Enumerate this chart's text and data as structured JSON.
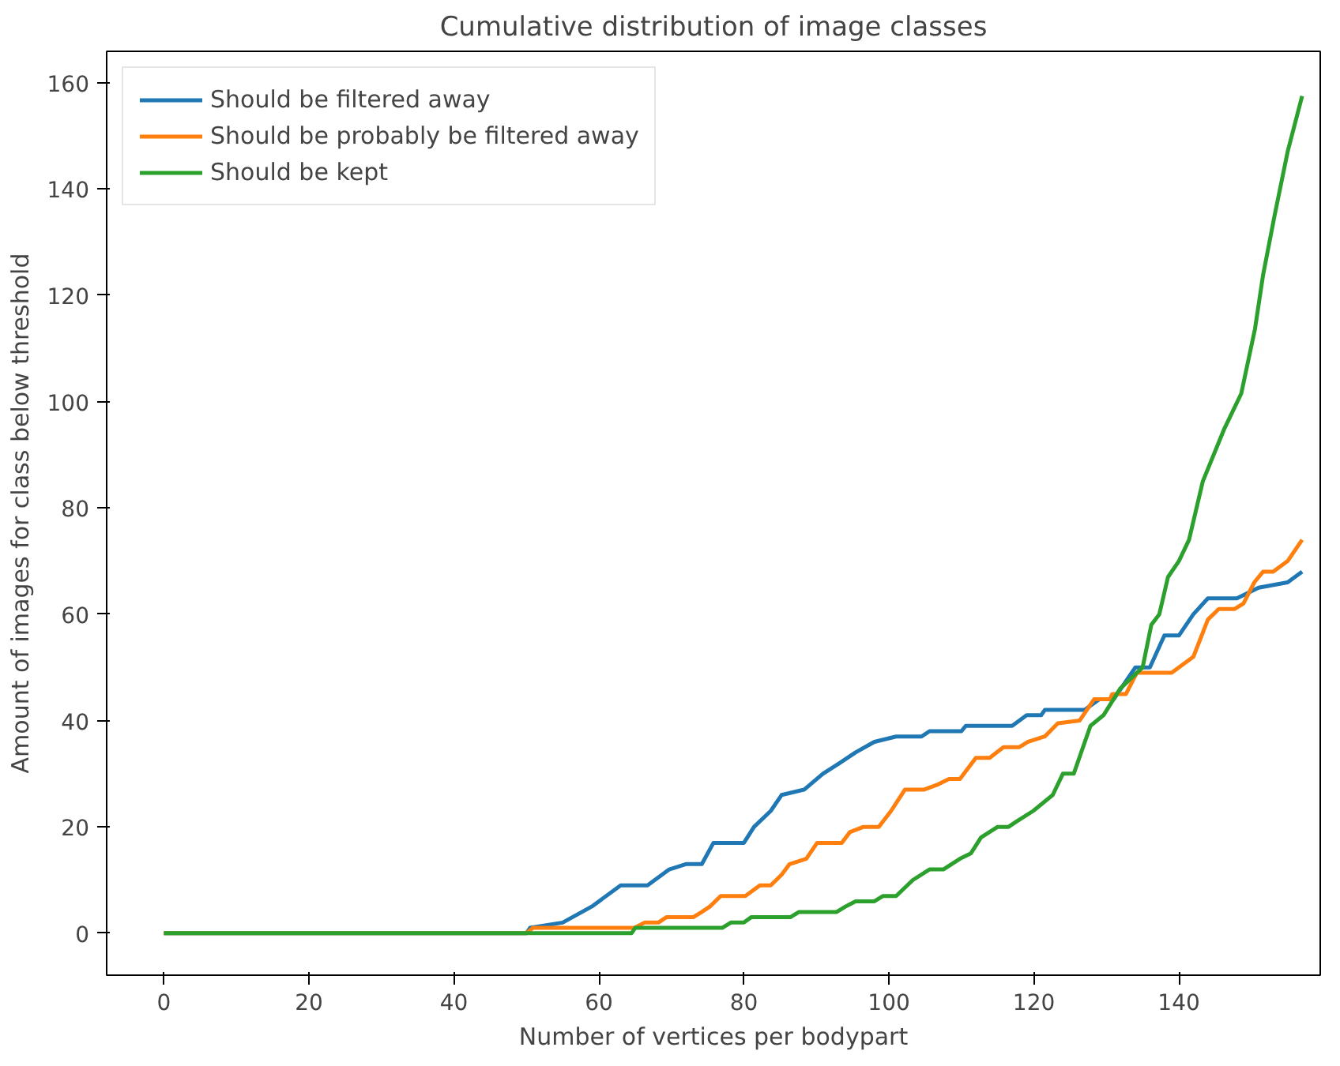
{
  "chart_data": {
    "type": "line",
    "title": "Cumulative distribution of image classes",
    "xlabel": "Number of vertices per bodypart",
    "ylabel": "Amount of images for class below threshold",
    "xlim": [
      -7.9,
      159.5
    ],
    "ylim": [
      -7.9,
      165.9
    ],
    "xticks": [
      0,
      20,
      40,
      60,
      80,
      100,
      120,
      140
    ],
    "yticks": [
      0,
      20,
      40,
      60,
      80,
      100,
      120,
      140,
      160
    ],
    "grid": false,
    "legend": "top left",
    "marker": "none",
    "line_style": "solid",
    "series": [
      {
        "name": "Should be filtered away",
        "color": "#1f77b4",
        "x": [
          0,
          50,
          50.5,
          55,
          59,
          63,
          66.7,
          69.7,
          72,
          74.2,
          75.8,
          80,
          81.4,
          83.7,
          85.2,
          88.3,
          90.9,
          93.2,
          95.4,
          98,
          101,
          104.5,
          105.6,
          110,
          110.6,
          117,
          119,
          121,
          121.5,
          127,
          129,
          131,
          134,
          136,
          138,
          140,
          142,
          144,
          148,
          151,
          155,
          157
        ],
        "values": [
          0,
          0,
          1,
          2,
          5,
          9,
          9,
          12,
          13,
          13,
          17,
          17,
          20,
          23,
          26,
          27,
          30,
          32,
          34,
          36,
          37,
          37,
          38,
          38,
          39,
          39,
          41,
          41,
          42,
          42,
          44,
          44,
          50,
          50,
          56,
          56,
          60,
          63,
          63,
          65,
          66,
          68
        ]
      },
      {
        "name": "Should be probably be filtered away",
        "color": "#ff7f0e",
        "x": [
          0,
          50,
          50.9,
          64.9,
          66.3,
          68.2,
          69.3,
          73,
          74.2,
          75.3,
          76.8,
          80.2,
          82.2,
          83.7,
          85.2,
          86.3,
          88.6,
          90.1,
          93.5,
          94.6,
          96.5,
          98.6,
          100.3,
          102.2,
          104.8,
          106.8,
          108.3,
          109.8,
          112,
          113.9,
          115.8,
          118,
          119.2,
          121.5,
          123.3,
          126.3,
          128.3,
          130.5,
          130.8,
          132.7,
          134.2,
          139,
          142,
          144,
          145.5,
          147.7,
          148.9,
          150.4,
          151.6,
          153,
          155,
          157
        ],
        "values": [
          0,
          0,
          1,
          1,
          2,
          2,
          3,
          3,
          4,
          5,
          7,
          7,
          9,
          9,
          11,
          13,
          14,
          17,
          17,
          19,
          20,
          20,
          23,
          27,
          27,
          28,
          29,
          29,
          33,
          33,
          35,
          35,
          36,
          37,
          39.5,
          40,
          44,
          44,
          45,
          45,
          49,
          49,
          52,
          59,
          61,
          61,
          62,
          66,
          68,
          68,
          70,
          74
        ]
      },
      {
        "name": "Should be kept",
        "color": "#2ca02c",
        "x": [
          0,
          64.5,
          65,
          77,
          78.2,
          80,
          81,
          86.4,
          87.6,
          92.8,
          94,
          95.4,
          98,
          99.2,
          101,
          103.3,
          105.6,
          107.5,
          109.8,
          111.3,
          112.7,
          115,
          116.5,
          117.6,
          119.9,
          122.6,
          124,
          125.5,
          127.8,
          129.6,
          131.9,
          135,
          136.2,
          137.3,
          138.5,
          140,
          141.4,
          143.3,
          146.3,
          148.6,
          150.5,
          151.6,
          153.2,
          155,
          157
        ],
        "values": [
          0,
          0,
          1,
          1,
          2,
          2,
          3,
          3,
          4,
          4,
          5,
          6,
          6,
          7,
          7,
          10,
          12,
          12,
          14,
          15,
          18,
          20,
          20,
          21,
          23,
          26,
          30,
          30,
          39,
          41,
          46,
          50,
          58,
          60,
          67,
          70,
          74,
          85,
          95,
          101.5,
          113.7,
          123.7,
          135,
          147,
          157.5
        ]
      }
    ]
  }
}
